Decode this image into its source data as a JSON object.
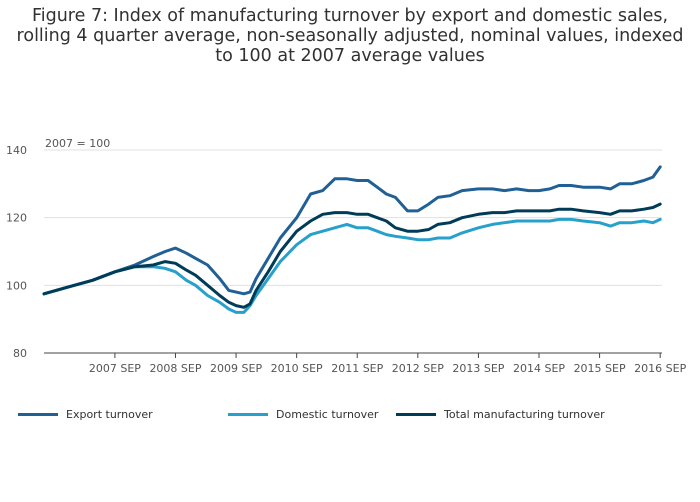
{
  "chart_data": {
    "type": "line",
    "title_lines": [
      "Figure 7: Index of manufacturing turnover by export and domestic sales,",
      "rolling 4 quarter average, non-seasonally adjusted, nominal values, indexed",
      "to 100 at 2007 average values"
    ],
    "unit_label": "2007 = 100",
    "ylim": [
      80,
      140
    ],
    "yticks": [
      80,
      100,
      120,
      140
    ],
    "xlim": [
      2006.5,
      2016.7
    ],
    "xticks": [
      {
        "label": "2007 SEP",
        "value": 2007.67
      },
      {
        "label": "2008 SEP",
        "value": 2008.67
      },
      {
        "label": "2009 SEP",
        "value": 2009.67
      },
      {
        "label": "2010 SEP",
        "value": 2010.67
      },
      {
        "label": "2011 SEP",
        "value": 2011.67
      },
      {
        "label": "2012 SEP",
        "value": 2012.67
      },
      {
        "label": "2013 SEP",
        "value": 2013.67
      },
      {
        "label": "2014 SEP",
        "value": 2014.67
      },
      {
        "label": "2015 SEP",
        "value": 2015.67
      },
      {
        "label": "2016 SEP",
        "value": 2016.67
      }
    ],
    "grid": true,
    "legend_position": "bottom",
    "x": [
      2006.5,
      2006.8,
      2007.0,
      2007.3,
      2007.67,
      2008.0,
      2008.3,
      2008.5,
      2008.67,
      2008.85,
      2009.0,
      2009.2,
      2009.4,
      2009.55,
      2009.67,
      2009.8,
      2009.9,
      2010.0,
      2010.2,
      2010.4,
      2010.67,
      2010.9,
      2011.1,
      2011.3,
      2011.5,
      2011.67,
      2011.85,
      2012.0,
      2012.15,
      2012.3,
      2012.5,
      2012.67,
      2012.85,
      2013.0,
      2013.2,
      2013.4,
      2013.67,
      2013.9,
      2014.1,
      2014.3,
      2014.5,
      2014.67,
      2014.85,
      2015.0,
      2015.2,
      2015.4,
      2015.67,
      2015.85,
      2016.0,
      2016.2,
      2016.4,
      2016.55,
      2016.67
    ],
    "series": [
      {
        "name": "Export turnover",
        "color": "#206095",
        "values": [
          97.5,
          99,
          100,
          101.5,
          104,
          106,
          108.5,
          110,
          111,
          109.5,
          108,
          106,
          102,
          98.5,
          98,
          97.5,
          98,
          102,
          108,
          114,
          120,
          127,
          128,
          131.5,
          131.5,
          131,
          131,
          129,
          127,
          126,
          122,
          122,
          124,
          126,
          126.5,
          128,
          128.5,
          128.5,
          128,
          128.5,
          128,
          128,
          128.5,
          129.5,
          129.5,
          129,
          129,
          128.5,
          130,
          130,
          131,
          132,
          135
        ]
      },
      {
        "name": "Domestic turnover",
        "color": "#27a0cc",
        "values": [
          97.5,
          99,
          100,
          101.5,
          104,
          105.5,
          105.5,
          105,
          104,
          101.5,
          100,
          97,
          95,
          93,
          92,
          92,
          94,
          97,
          102,
          107,
          112,
          115,
          116,
          117,
          118,
          117,
          117,
          116,
          115,
          114.5,
          114,
          113.5,
          113.5,
          114,
          114,
          115.5,
          117,
          118,
          118.5,
          119,
          119,
          119,
          119,
          119.5,
          119.5,
          119,
          118.5,
          117.5,
          118.5,
          118.5,
          119,
          118.5,
          119.5
        ]
      },
      {
        "name": "Total manufacturing turnover",
        "color": "#003c57",
        "values": [
          97.5,
          99,
          100,
          101.5,
          104,
          105.5,
          106,
          107,
          106.5,
          104.5,
          103,
          100,
          97,
          95,
          94,
          93.5,
          94.5,
          98.5,
          104,
          110,
          116,
          119,
          121,
          121.5,
          121.5,
          121,
          121,
          120,
          119,
          117,
          116,
          116,
          116.5,
          118,
          118.5,
          120,
          121,
          121.5,
          121.5,
          122,
          122,
          122,
          122,
          122.5,
          122.5,
          122,
          121.5,
          121,
          122,
          122,
          122.5,
          123,
          124
        ]
      }
    ]
  }
}
